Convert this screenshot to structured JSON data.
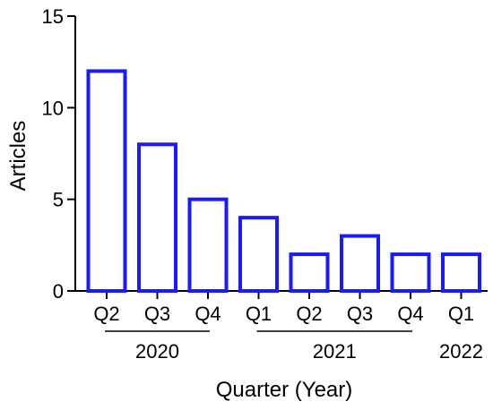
{
  "chart_data": {
    "type": "bar",
    "categories": [
      "Q2",
      "Q3",
      "Q4",
      "Q1",
      "Q2",
      "Q3",
      "Q4",
      "Q1"
    ],
    "values": [
      12,
      8,
      5,
      4,
      2,
      3,
      2,
      2
    ],
    "groups": [
      {
        "label": "2020",
        "categories": [
          "Q2",
          "Q3",
          "Q4"
        ]
      },
      {
        "label": "2021",
        "categories": [
          "Q1",
          "Q2",
          "Q3",
          "Q4"
        ]
      },
      {
        "label": "2022",
        "categories": [
          "Q1"
        ]
      }
    ],
    "title": "",
    "xlabel": "Quarter (Year)",
    "ylabel": "Articles",
    "ylim": [
      0,
      15
    ],
    "yticks": [
      "0",
      "5",
      "10",
      "15"
    ],
    "grid": false,
    "bar_fill": "#ffffff",
    "bar_stroke": "#1a1aff"
  }
}
